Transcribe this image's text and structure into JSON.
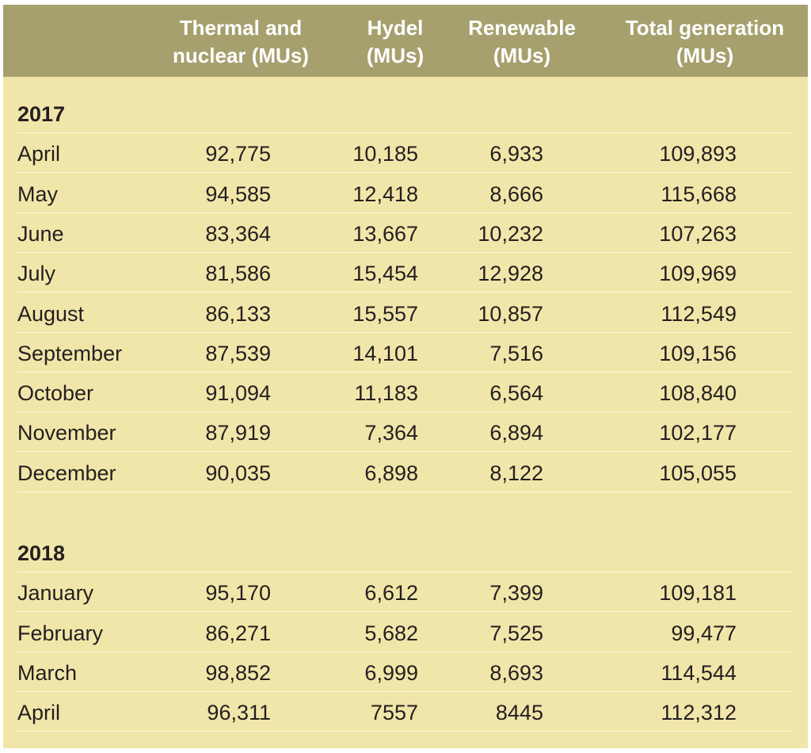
{
  "headers": [
    "Thermal and\nnuclear (MUs)",
    "Hydel\n(MUs)",
    "Renewable\n(MUs)",
    "Total generation\n(MUs)"
  ],
  "sections": [
    {
      "year": "2017",
      "rows": [
        {
          "month": "April",
          "thermal": "92,775",
          "hydel": "10,185",
          "renewable": "6,933",
          "total": "109,893"
        },
        {
          "month": "May",
          "thermal": "94,585",
          "hydel": "12,418",
          "renewable": "8,666",
          "total": "115,668"
        },
        {
          "month": "June",
          "thermal": "83,364",
          "hydel": "13,667",
          "renewable": "10,232",
          "total": "107,263"
        },
        {
          "month": "July",
          "thermal": "81,586",
          "hydel": "15,454",
          "renewable": "12,928",
          "total": "109,969"
        },
        {
          "month": "August",
          "thermal": "86,133",
          "hydel": "15,557",
          "renewable": "10,857",
          "total": "112,549"
        },
        {
          "month": "September",
          "thermal": "87,539",
          "hydel": "14,101",
          "renewable": "7,516",
          "total": "109,156"
        },
        {
          "month": "October",
          "thermal": "91,094",
          "hydel": "11,183",
          "renewable": "6,564",
          "total": "108,840"
        },
        {
          "month": "November",
          "thermal": "87,919",
          "hydel": "7,364",
          "renewable": "6,894",
          "total": "102,177"
        },
        {
          "month": "December",
          "thermal": "90,035",
          "hydel": "6,898",
          "renewable": "8,122",
          "total": "105,055"
        }
      ]
    },
    {
      "year": "2018",
      "rows": [
        {
          "month": "January",
          "thermal": "95,170",
          "hydel": "6,612",
          "renewable": "7,399",
          "total": "109,181"
        },
        {
          "month": "February",
          "thermal": "86,271",
          "hydel": "5,682",
          "renewable": "7,525",
          "total": "99,477"
        },
        {
          "month": "March",
          "thermal": "98,852",
          "hydel": "6,999",
          "renewable": "8,693",
          "total": "114,544"
        },
        {
          "month": "April",
          "thermal": "96,311",
          "hydel": "7557",
          "renewable": "8445",
          "total": "112,312"
        }
      ]
    }
  ]
}
